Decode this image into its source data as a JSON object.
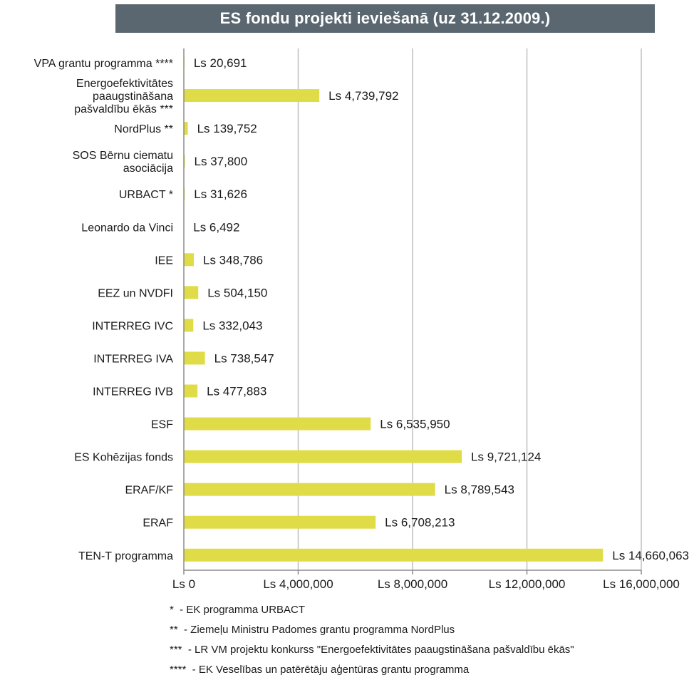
{
  "title": "ES fondu projekti ieviešanā (uz 31.12.2009.)",
  "chart_data": {
    "type": "bar",
    "orientation": "horizontal",
    "title": "ES fondu projekti ieviešanā (uz 31.12.2009.)",
    "categories": [
      "VPA grantu programma ****",
      "Energoefektivitātes paaugstināšana pašvaldību ēkās ***",
      "NordPlus **",
      "SOS Bērnu ciematu asociācija",
      "URBACT *",
      "Leonardo da Vinci",
      "IEE",
      "EEZ un NVDFI",
      "INTERREG IVC",
      "INTERREG IVA",
      "INTERREG IVB",
      "ESF",
      "ES Kohēzijas fonds",
      "ERAF/KF",
      "ERAF",
      "TEN-T programma"
    ],
    "category_lines": [
      [
        "VPA grantu programma ****"
      ],
      [
        "Energoefektivitātes",
        "paaugstināšana",
        "pašvaldību ēkās ***"
      ],
      [
        "NordPlus **"
      ],
      [
        "SOS Bērnu ciematu",
        "asociācija"
      ],
      [
        "URBACT *"
      ],
      [
        "Leonardo da Vinci"
      ],
      [
        "IEE"
      ],
      [
        "EEZ un NVDFI"
      ],
      [
        "INTERREG IVC"
      ],
      [
        "INTERREG IVA"
      ],
      [
        "INTERREG IVB"
      ],
      [
        "ESF"
      ],
      [
        "ES Kohēzijas fonds"
      ],
      [
        "ERAF/KF"
      ],
      [
        "ERAF"
      ],
      [
        "TEN-T programma"
      ]
    ],
    "values": [
      20691,
      4739792,
      139752,
      37800,
      31626,
      6492,
      348786,
      504150,
      332043,
      738547,
      477883,
      6535950,
      9721124,
      8789543,
      6708213,
      14660063
    ],
    "data_labels": [
      "Ls 20,691",
      "Ls 4,739,792",
      "Ls 139,752",
      "Ls 37,800",
      "Ls 31,626",
      "Ls 6,492",
      "Ls 348,786",
      "Ls 504,150",
      "Ls 332,043",
      "Ls 738,547",
      "Ls 477,883",
      "Ls 6,535,950",
      "Ls 9,721,124",
      "Ls 8,789,543",
      "Ls 6,708,213",
      "Ls 14,660,063"
    ],
    "xlim": [
      0,
      16000000
    ],
    "x_ticks": [
      0,
      4000000,
      8000000,
      12000000,
      16000000
    ],
    "x_tick_labels": [
      "Ls 0",
      "Ls 4,000,000",
      "Ls 8,000,000",
      "Ls 12,000,000",
      "Ls 16,000,000"
    ],
    "xlabel": "",
    "ylabel": "",
    "grid": "vertical",
    "legend": "none",
    "bar_color": "#e0dc47",
    "grid_color": "#bfbfbf"
  },
  "footnotes": [
    "*  - EK programma URBACT",
    "**  - Ziemeļu Ministru Padomes grantu programma NordPlus",
    "***  - LR VM projektu konkurss \"Energoefektivitātes paaugstināšana pašvaldību ēkās\"",
    "****  - EK Veselības un patērētāju aģentūras grantu programma"
  ]
}
